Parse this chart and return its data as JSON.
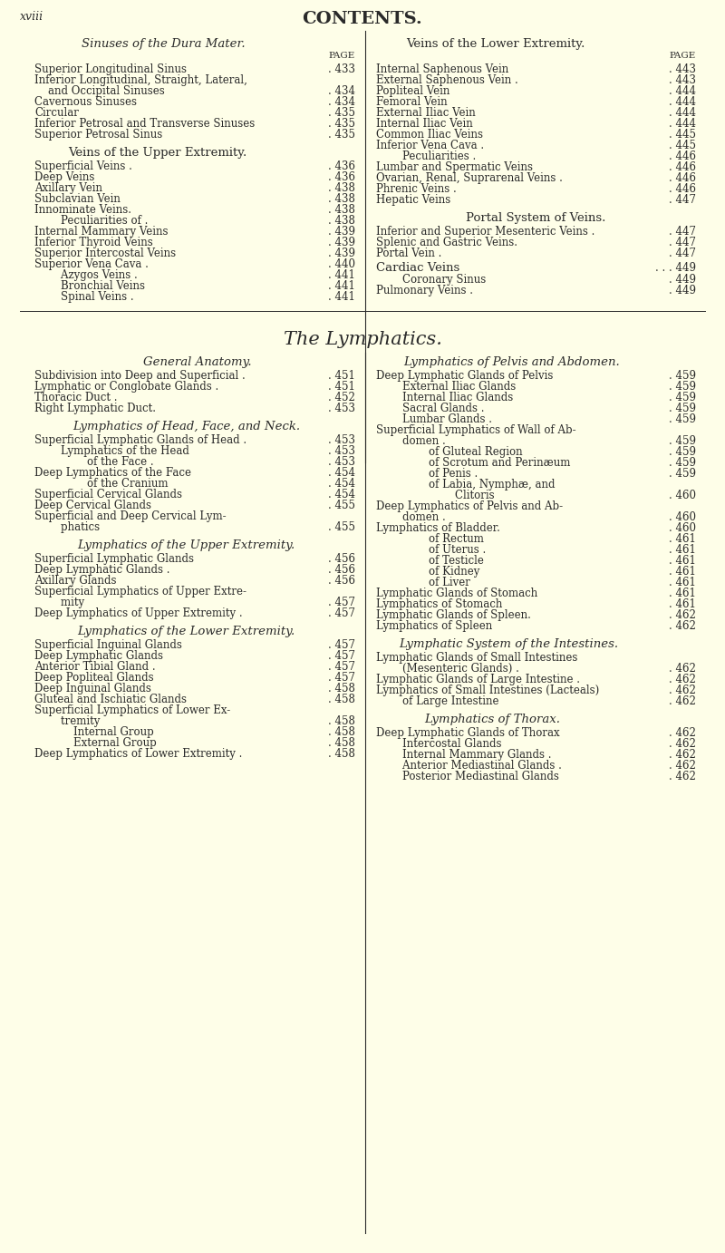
{
  "bg_color": "#FEFEE8",
  "text_color": "#2a2a2a",
  "page_label": "xviii",
  "title": "CONTENTS.",
  "col1_header": "Sinuses of the Dura Mater.",
  "col1_entries": [
    [
      "Superior Longitudinal Sinus",
      "433",
      0
    ],
    [
      "Inferior Longitudinal, Straight, Lateral,",
      "",
      0
    ],
    [
      "    and Occipital Sinuses",
      "434",
      0
    ],
    [
      "Cavernous Sinuses",
      "434",
      0
    ],
    [
      "Circular",
      "435",
      0
    ],
    [
      "Inferior Petrosal and Transverse Sinuses",
      "435",
      0
    ],
    [
      "Superior Petrosal Sinus",
      "435",
      0
    ]
  ],
  "col1_header2": "Veins of the Upper Extremity.",
  "col1_entries2": [
    [
      "Superficial Veins .",
      "436",
      0
    ],
    [
      "Deep Veins",
      "436",
      0
    ],
    [
      "Axillary Vein",
      "438",
      0
    ],
    [
      "Subclavian Vein",
      "438",
      0
    ],
    [
      "Innominate Veins.",
      "438",
      0
    ],
    [
      "    Peculiarities of .",
      "438",
      1
    ],
    [
      "Internal Mammary Veins",
      "439",
      0
    ],
    [
      "Inferior Thyroid Veins",
      "439",
      0
    ],
    [
      "Superior Intercostal Veins",
      "439",
      0
    ],
    [
      "Superior Vena Cava .",
      "440",
      0
    ],
    [
      "    Azygos Veins .",
      "441",
      1
    ],
    [
      "    Bronchial Veins",
      "441",
      1
    ],
    [
      "    Spinal Veins .",
      "441",
      1
    ]
  ],
  "col2_header": "Veins of the Lower Extremity.",
  "col2_entries": [
    [
      "Internal Saphenous Vein",
      "443",
      0
    ],
    [
      "External Saphenous Vein .",
      "443",
      0
    ],
    [
      "Popliteal Vein",
      "444",
      0
    ],
    [
      "Femoral Vein",
      "444",
      0
    ],
    [
      "External Iliac Vein",
      "444",
      0
    ],
    [
      "Internal Iliac Vein",
      "444",
      0
    ],
    [
      "Common Iliac Veins",
      "445",
      0
    ],
    [
      "Inferior Vena Cava .",
      "445",
      0
    ],
    [
      "    Peculiarities .",
      "446",
      1
    ],
    [
      "Lumbar and Spermatic Veins",
      "446",
      0
    ],
    [
      "Ovarian, Renal, Suprarenal Veins .",
      "446",
      0
    ],
    [
      "Phrenic Veins .",
      "446",
      0
    ],
    [
      "Hepatic Veins",
      "447",
      0
    ]
  ],
  "col2_header2": "Portal System of Veins.",
  "col2_entries2": [
    [
      "Inferior and Superior Mesenteric Veins .",
      "447",
      0
    ],
    [
      "Splenic and Gastric Veins.",
      "447",
      0
    ],
    [
      "Portal Vein .",
      "447",
      0
    ]
  ],
  "col2_header3": "Cardiac Veins",
  "col2_page3": "449",
  "col2_entries3": [
    [
      "    Coronary Sinus",
      "449",
      1
    ],
    [
      "Pulmonary Veins .",
      "449",
      0
    ]
  ],
  "lymph_title": "The Lymphatics.",
  "lcol1_header": "General Anatomy.",
  "lcol1_entries": [
    [
      "Subdivision into Deep and Superficial .",
      "451",
      0
    ],
    [
      "Lymphatic or Conglobate Glands .",
      "451",
      0
    ],
    [
      "Thoracic Duct .",
      "452",
      0
    ],
    [
      "Right Lymphatic Duct.",
      "453",
      0
    ]
  ],
  "lcol1_header2": "Lymphatics of Head, Face, and Neck.",
  "lcol1_entries2": [
    [
      "Superficial Lymphatic Glands of Head .",
      "453",
      0
    ],
    [
      "    Lymphatics of the Head",
      "453",
      1
    ],
    [
      "        of the Face .",
      "453",
      2
    ],
    [
      "Deep Lymphatics of the Face",
      "454",
      0
    ],
    [
      "        of the Cranium",
      "454",
      2
    ],
    [
      "Superficial Cervical Glands",
      "454",
      0
    ],
    [
      "Deep Cervical Glands",
      "455",
      0
    ],
    [
      "Superficial and Deep Cervical Lym-",
      "",
      0
    ],
    [
      "    phatics",
      "455",
      1
    ]
  ],
  "lcol1_header3": "Lymphatics of the Upper Extremity.",
  "lcol1_entries3": [
    [
      "Superficial Lymphatic Glands",
      "456",
      0
    ],
    [
      "Deep Lymphatic Glands .",
      "456",
      0
    ],
    [
      "Axillary Glands",
      "456",
      0
    ],
    [
      "Superficial Lymphatics of Upper Extre-",
      "",
      0
    ],
    [
      "    mity",
      "457",
      1
    ],
    [
      "Deep Lymphatics of Upper Extremity .",
      "457",
      0
    ]
  ],
  "lcol1_header4": "Lymphatics of the Lower Extremity.",
  "lcol1_entries4": [
    [
      "Superficial Inguinal Glands",
      "457",
      0
    ],
    [
      "Deep Lymphatic Glands",
      "457",
      0
    ],
    [
      "Anterior Tibial Gland .",
      "457",
      0
    ],
    [
      "Deep Popliteal Glands",
      "457",
      0
    ],
    [
      "Deep Inguinal Glands",
      "458",
      0
    ],
    [
      "Gluteal and Ischiatic Glands",
      "458",
      0
    ],
    [
      "Superficial Lymphatics of Lower Ex-",
      "",
      0
    ],
    [
      "    tremity",
      "458",
      1
    ],
    [
      "    Internal Group",
      "458",
      2
    ],
    [
      "    External Group",
      "458",
      2
    ],
    [
      "Deep Lymphatics of Lower Extremity .",
      "458",
      0
    ]
  ],
  "lcol2_header": "Lymphatics of Pelvis and Abdomen.",
  "lcol2_entries": [
    [
      "Deep Lymphatic Glands of Pelvis",
      "459",
      0
    ],
    [
      "    External Iliac Glands",
      "459",
      1
    ],
    [
      "    Internal Iliac Glands",
      "459",
      1
    ],
    [
      "    Sacral Glands .",
      "459",
      1
    ],
    [
      "    Lumbar Glands .",
      "459",
      1
    ],
    [
      "Superficial Lymphatics of Wall of Ab-",
      "",
      0
    ],
    [
      "    domen .",
      "459",
      1
    ],
    [
      "        of Gluteal Region",
      "459",
      2
    ],
    [
      "        of Scrotum and Perinæum",
      "459",
      2
    ],
    [
      "        of Penis .",
      "459",
      2
    ],
    [
      "        of Labia, Nymphæ, and",
      "",
      2
    ],
    [
      "            Clitoris",
      "460",
      3
    ],
    [
      "Deep Lymphatics of Pelvis and Ab-",
      "",
      0
    ],
    [
      "    domen .",
      "460",
      1
    ],
    [
      "Lymphatics of Bladder.",
      "460",
      0
    ],
    [
      "        of Rectum",
      "461",
      2
    ],
    [
      "        of Uterus .",
      "461",
      2
    ],
    [
      "        of Testicle",
      "461",
      2
    ],
    [
      "        of Kidney",
      "461",
      2
    ],
    [
      "        of Liver",
      "461",
      2
    ],
    [
      "Lymphatic Glands of Stomach",
      "461",
      0
    ],
    [
      "Lymphatics of Stomach",
      "461",
      0
    ],
    [
      "Lymphatic Glands of Spleen.",
      "462",
      0
    ],
    [
      "Lymphatics of Spleen",
      "462",
      0
    ]
  ],
  "lcol2_header2": "Lymphatic System of the Intestines.",
  "lcol2_entries2": [
    [
      "Lymphatic Glands of Small Intestines",
      "",
      0
    ],
    [
      "    (Mesenteric Glands) .",
      "462",
      1
    ],
    [
      "Lymphatic Glands of Large Intestine .",
      "462",
      0
    ],
    [
      "Lymphatics of Small Intestines (Lacteals)",
      "462",
      0
    ],
    [
      "    of Large Intestine",
      "462",
      1
    ]
  ],
  "lcol2_header3": "Lymphatics of Thorax.",
  "lcol2_entries3": [
    [
      "Deep Lymphatic Glands of Thorax",
      "462",
      0
    ],
    [
      "    Intercostal Glands",
      "462",
      1
    ],
    [
      "    Internal Mammary Glands .",
      "462",
      1
    ],
    [
      "    Anterior Mediastinal Glands .",
      "462",
      1
    ],
    [
      "    Posterior Mediastinal Glands",
      "462",
      1
    ]
  ]
}
